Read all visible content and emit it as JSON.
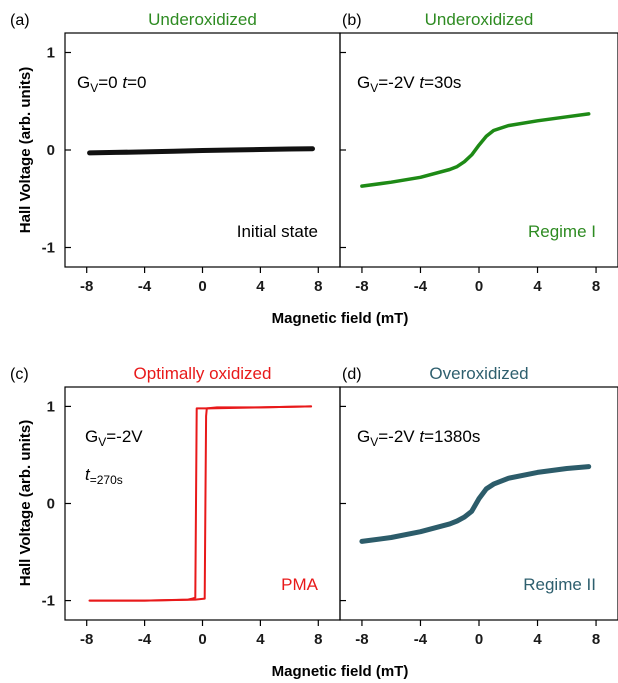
{
  "figure": {
    "xlabel": "Magnetic field (mT)",
    "ylabel": "Hall Voltage (arb. units)"
  },
  "chart_data": [
    {
      "type": "line",
      "panel": "(a)",
      "title": "Underoxidized",
      "title_color": "#2e8b22",
      "series_color": "#111111",
      "params": [
        "G",
        "V",
        "=0  ",
        "t",
        "=0"
      ],
      "state_label": "Initial state",
      "state_color": "#000000",
      "xlabel": "Magnetic field (mT)",
      "ylabel": "Hall Voltage (arb. units)",
      "xlim": [
        -9.5,
        9.5
      ],
      "ylim": [
        -1.2,
        1.2
      ],
      "xticks": [
        -8,
        -4,
        0,
        4,
        8
      ],
      "yticks": [
        -1,
        0,
        1
      ],
      "series": [
        {
          "x": [
            -7.8,
            -6,
            -4,
            -2,
            0,
            2,
            4,
            6,
            7.6
          ],
          "y": [
            -0.03,
            -0.025,
            -0.02,
            -0.012,
            -0.005,
            0.0,
            0.005,
            0.01,
            0.012
          ]
        }
      ]
    },
    {
      "type": "line",
      "panel": "(b)",
      "title": "Underoxidized",
      "title_color": "#2e8b22",
      "series_color": "#1e8a16",
      "params": [
        "G",
        "V",
        "=-2V  ",
        "t",
        "=30s"
      ],
      "state_label": "Regime I",
      "state_color": "#2e8b22",
      "xlabel": "Magnetic field (mT)",
      "ylabel": "Hall Voltage (arb. units)",
      "xlim": [
        -9.5,
        9.5
      ],
      "ylim": [
        -1.2,
        1.2
      ],
      "xticks": [
        -8,
        -4,
        0,
        4,
        8
      ],
      "yticks": [
        -1,
        0,
        1
      ],
      "series": [
        {
          "x": [
            -8,
            -6,
            -4,
            -2,
            -1.5,
            -1,
            -0.5,
            0,
            0.5,
            1,
            2,
            4,
            6,
            7.5
          ],
          "y": [
            -0.37,
            -0.33,
            -0.28,
            -0.2,
            -0.17,
            -0.12,
            -0.05,
            0.05,
            0.14,
            0.2,
            0.25,
            0.3,
            0.34,
            0.37
          ]
        }
      ]
    },
    {
      "type": "line",
      "panel": "(c)",
      "title": "Optimally oxidized",
      "title_color": "#e8191a",
      "series_color": "#e8191a",
      "params_line1": [
        "G",
        "V",
        "=-2V"
      ],
      "params_line2": [
        "t",
        "=270s"
      ],
      "state_label": "PMA",
      "state_color": "#e8191a",
      "xlabel": "Magnetic field (mT)",
      "ylabel": "Hall Voltage (arb. units)",
      "xlim": [
        -9.5,
        9.5
      ],
      "ylim": [
        -1.2,
        1.2
      ],
      "xticks": [
        -8,
        -4,
        0,
        4,
        8
      ],
      "yticks": [
        -1,
        0,
        1
      ],
      "series": [
        {
          "name": "",
          "x": [
            -7.8,
            -4,
            -1,
            -0.7,
            -0.5,
            -0.45,
            -0.4,
            0.5,
            4,
            7.5
          ],
          "y": [
            -1.0,
            -1.0,
            -0.99,
            -0.98,
            -0.97,
            0.0,
            0.98,
            0.98,
            0.99,
            1.0
          ]
        },
        {
          "name": "",
          "x": [
            7.5,
            4,
            1,
            0.3,
            0.25,
            0.2,
            0.15,
            -0.5,
            -4,
            -7.8
          ],
          "y": [
            1.0,
            0.99,
            0.99,
            0.98,
            0.9,
            0.0,
            -0.98,
            -0.99,
            -1.0,
            -1.0
          ]
        }
      ]
    },
    {
      "type": "line",
      "panel": "(d)",
      "title": "Overoxidized",
      "title_color": "#2e5f6e",
      "series_color": "#2c5c6a",
      "params": [
        "G",
        "V",
        "=-2V  ",
        "t",
        "=1380s"
      ],
      "state_label": "Regime II",
      "state_color": "#2e5f6e",
      "xlabel": "Magnetic field (mT)",
      "ylabel": "Hall Voltage (arb. units)",
      "xlim": [
        -9.5,
        9.5
      ],
      "ylim": [
        -1.2,
        1.2
      ],
      "xticks": [
        -8,
        -4,
        0,
        4,
        8
      ],
      "yticks": [
        -1,
        0,
        1
      ],
      "series": [
        {
          "x": [
            -8,
            -6,
            -4,
            -2,
            -1.5,
            -1,
            -0.5,
            0,
            0.5,
            1,
            2,
            4,
            6,
            7.5
          ],
          "y": [
            -0.39,
            -0.35,
            -0.29,
            -0.21,
            -0.18,
            -0.14,
            -0.08,
            0.05,
            0.15,
            0.2,
            0.26,
            0.32,
            0.36,
            0.38
          ]
        }
      ]
    }
  ]
}
